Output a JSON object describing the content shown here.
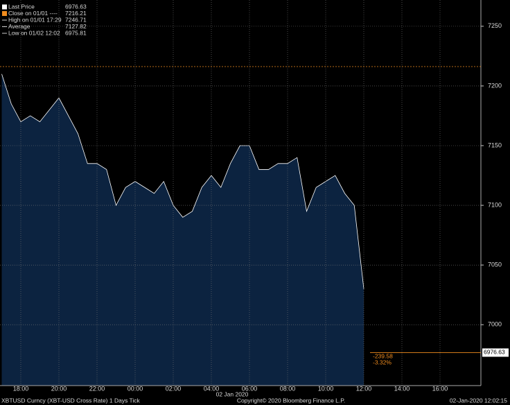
{
  "chart_data": {
    "type": "area",
    "categories": [
      null,
      null,
      "18:00",
      null,
      null,
      null,
      "20:00",
      null,
      null,
      null,
      "22:00",
      null,
      null,
      null,
      "00:00",
      null,
      null,
      null,
      "02:00",
      null,
      null,
      null,
      "04:00",
      null,
      null,
      null,
      "06:00",
      null,
      null,
      null,
      "08:00",
      null,
      null,
      null,
      "10:00",
      null,
      null,
      null,
      "12:00",
      null,
      null,
      null,
      "14:00",
      null,
      null,
      null,
      "16:00",
      null,
      null,
      null,
      null
    ],
    "series": [
      {
        "name": "Last Price",
        "color": "#ffffff",
        "fill": "#0c2340",
        "values": [
          7210,
          7185,
          7170,
          7175,
          7170,
          7180,
          7190,
          7175,
          7160,
          7135,
          7135,
          7130,
          7100,
          7115,
          7120,
          7115,
          7110,
          7120,
          7100,
          7090,
          7095,
          7115,
          7125,
          7115,
          7135,
          7150,
          7150,
          7130,
          7130,
          7135,
          7135,
          7140,
          7095,
          7115,
          7120,
          7125,
          7110,
          7100,
          7030,
          null,
          null,
          null,
          null,
          null,
          null,
          null,
          null,
          null,
          null,
          null,
          null
        ]
      }
    ],
    "ylim": [
      6949,
      7272
    ],
    "yticks": [
      7000,
      7050,
      7100,
      7150,
      7200,
      7250
    ],
    "grid": true,
    "legend": [
      {
        "name": "Last Price",
        "value": 6976.63,
        "color": "#ffffff"
      },
      {
        "name": "Close on 01/01 ----",
        "value": 7216.21,
        "color": "#f08c1e"
      },
      {
        "name": "High on 01/01 17:29",
        "value": 7246.71,
        "color": "#ffffff"
      },
      {
        "name": "Average",
        "value": 7127.82,
        "color": "#ffffff"
      },
      {
        "name": "Low on 01/02 12:02",
        "value": 6975.81,
        "color": "#ffffff"
      }
    ],
    "last_price_label": "6976.63",
    "change": "-239.58",
    "change_pct": "-3.32%",
    "date_label": "02 Jan 2020",
    "footer_left": "XBTUSD Curncy (XBT-USD Cross Rate) 1 Days  Tick",
    "footer_center": "Copyright© 2020 Bloomberg Finance L.P.",
    "footer_right": "02-Jan-2020 12:02:15"
  }
}
